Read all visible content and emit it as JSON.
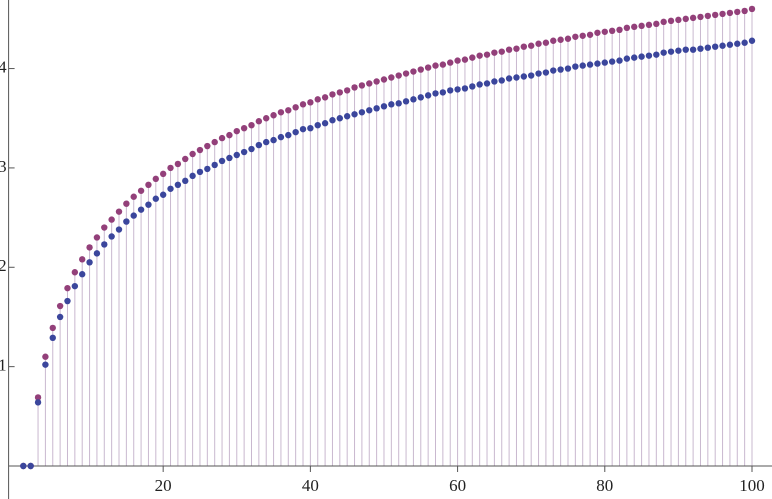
{
  "chart_data": {
    "type": "discrete-stem",
    "x": [
      1,
      2,
      3,
      4,
      5,
      6,
      7,
      8,
      9,
      10,
      11,
      12,
      13,
      14,
      15,
      16,
      17,
      18,
      19,
      20,
      21,
      22,
      23,
      24,
      25,
      26,
      27,
      28,
      29,
      30,
      31,
      32,
      33,
      34,
      35,
      36,
      37,
      38,
      39,
      40,
      41,
      42,
      43,
      44,
      45,
      46,
      47,
      48,
      49,
      50,
      51,
      52,
      53,
      54,
      55,
      56,
      57,
      58,
      59,
      60,
      61,
      62,
      63,
      64,
      65,
      66,
      67,
      68,
      69,
      70,
      71,
      72,
      73,
      74,
      75,
      76,
      77,
      78,
      79,
      80,
      81,
      82,
      83,
      84,
      85,
      86,
      87,
      88,
      89,
      90,
      91,
      92,
      93,
      94,
      95,
      96,
      97,
      98,
      99,
      100
    ],
    "series": [
      {
        "color": "#93407a",
        "values": [
          0,
          0,
          0.69,
          1.1,
          1.39,
          1.61,
          1.79,
          1.95,
          2.08,
          2.2,
          2.3,
          2.4,
          2.48,
          2.56,
          2.64,
          2.71,
          2.77,
          2.83,
          2.89,
          2.94,
          3.0,
          3.04,
          3.09,
          3.14,
          3.18,
          3.22,
          3.26,
          3.3,
          3.33,
          3.37,
          3.4,
          3.43,
          3.47,
          3.5,
          3.53,
          3.56,
          3.58,
          3.61,
          3.64,
          3.66,
          3.69,
          3.71,
          3.74,
          3.76,
          3.78,
          3.81,
          3.83,
          3.85,
          3.87,
          3.89,
          3.91,
          3.93,
          3.95,
          3.97,
          3.99,
          4.01,
          4.03,
          4.04,
          4.06,
          4.08,
          4.09,
          4.11,
          4.13,
          4.14,
          4.16,
          4.17,
          4.19,
          4.2,
          4.22,
          4.23,
          4.25,
          4.26,
          4.28,
          4.29,
          4.3,
          4.32,
          4.33,
          4.34,
          4.36,
          4.37,
          4.38,
          4.39,
          4.41,
          4.42,
          4.43,
          4.44,
          4.45,
          4.47,
          4.48,
          4.49,
          4.5,
          4.51,
          4.52,
          4.53,
          4.54,
          4.55,
          4.56,
          4.57,
          4.58,
          4.6
        ]
      },
      {
        "color": "#3b469c",
        "values": [
          0,
          0,
          0.64,
          1.02,
          1.29,
          1.5,
          1.66,
          1.81,
          1.93,
          2.05,
          2.14,
          2.23,
          2.31,
          2.38,
          2.46,
          2.52,
          2.58,
          2.63,
          2.69,
          2.73,
          2.79,
          2.83,
          2.87,
          2.92,
          2.96,
          2.99,
          3.03,
          3.07,
          3.1,
          3.13,
          3.16,
          3.19,
          3.23,
          3.26,
          3.28,
          3.31,
          3.33,
          3.36,
          3.39,
          3.4,
          3.43,
          3.45,
          3.48,
          3.5,
          3.52,
          3.54,
          3.56,
          3.58,
          3.6,
          3.62,
          3.64,
          3.65,
          3.67,
          3.69,
          3.71,
          3.73,
          3.75,
          3.76,
          3.78,
          3.79,
          3.8,
          3.82,
          3.84,
          3.85,
          3.87,
          3.88,
          3.9,
          3.91,
          3.92,
          3.93,
          3.95,
          3.96,
          3.98,
          3.99,
          4.0,
          4.02,
          4.03,
          4.04,
          4.05,
          4.06,
          4.07,
          4.08,
          4.1,
          4.11,
          4.12,
          4.13,
          4.14,
          4.16,
          4.17,
          4.18,
          4.19,
          4.19,
          4.2,
          4.21,
          4.22,
          4.23,
          4.24,
          4.25,
          4.26,
          4.28
        ]
      }
    ],
    "stem_color": "#c9b8cf",
    "xlim": [
      -1,
      100
    ],
    "ylim": [
      0,
      4.69
    ],
    "xticks": [
      20,
      40,
      60,
      80,
      100
    ],
    "yticks": [
      1,
      2,
      3,
      4
    ]
  }
}
